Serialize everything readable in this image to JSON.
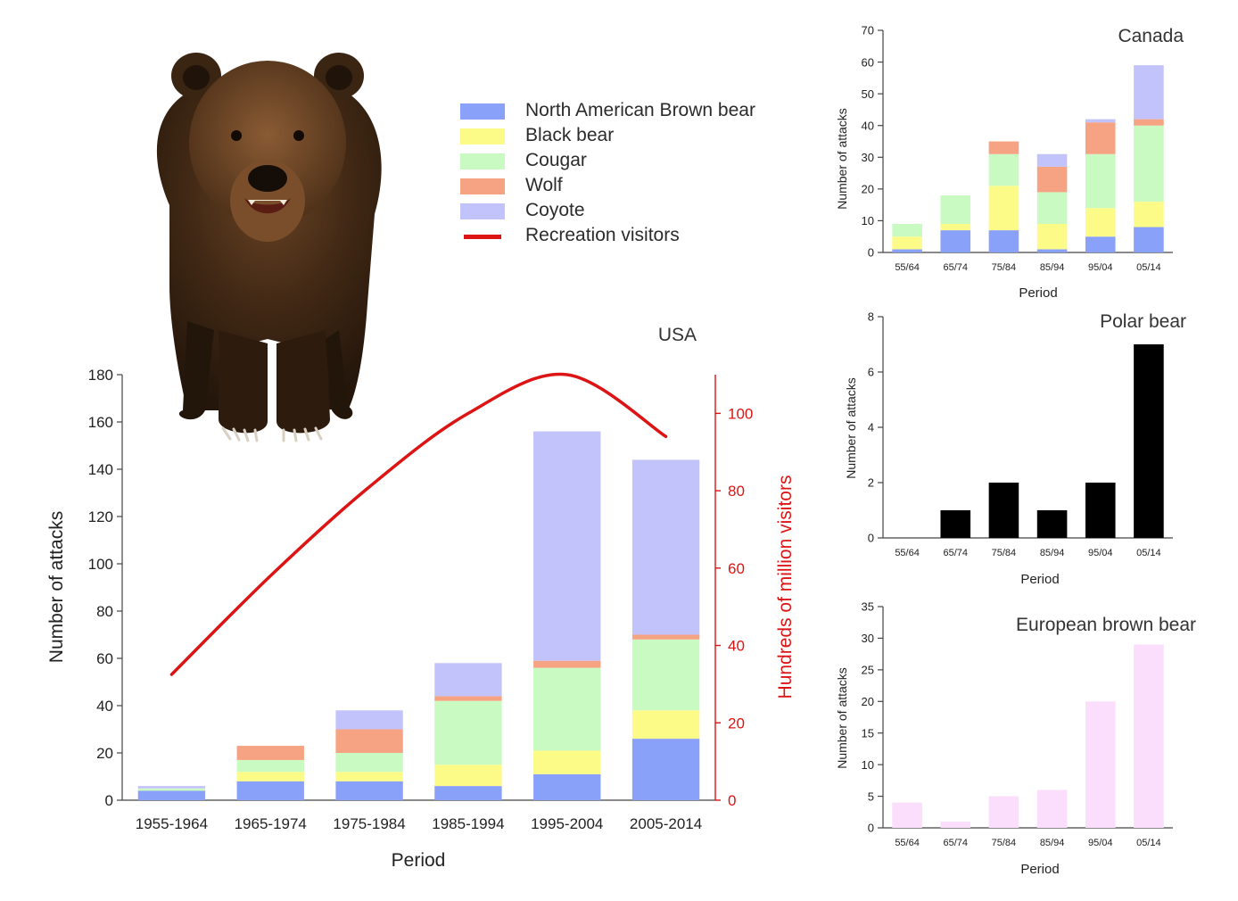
{
  "legend": {
    "items": [
      {
        "label": "North American Brown bear",
        "color": "#8aa1fa"
      },
      {
        "label": "Black bear",
        "color": "#fdfb88"
      },
      {
        "label": "Cougar",
        "color": "#c8fac2"
      },
      {
        "label": "Wolf",
        "color": "#f6a383"
      },
      {
        "label": "Coyote",
        "color": "#c3c3fb"
      },
      {
        "label": "Recreation visitors",
        "color": "#dd1414",
        "kind": "line"
      }
    ]
  },
  "chart_data": [
    {
      "id": "usa",
      "type": "bar",
      "stacked": true,
      "title": "USA",
      "xlabel": "Period",
      "ylabel": "Number of attacks",
      "y2label": "Hundreds of million visitors",
      "ylim": [
        0,
        180
      ],
      "yticks": [
        0,
        20,
        40,
        60,
        80,
        100,
        120,
        140,
        160,
        180
      ],
      "y2lim": [
        0,
        110
      ],
      "y2ticks": [
        0,
        20,
        40,
        60,
        80,
        100
      ],
      "categories": [
        "1955-1964",
        "1965-1974",
        "1975-1984",
        "1985-1994",
        "1995-2004",
        "2005-2014"
      ],
      "series": [
        {
          "name": "North American Brown bear",
          "values": [
            4,
            8,
            8,
            6,
            11,
            26
          ]
        },
        {
          "name": "Black bear",
          "values": [
            0,
            4,
            4,
            9,
            10,
            12
          ]
        },
        {
          "name": "Cougar",
          "values": [
            1,
            5,
            8,
            27,
            35,
            30
          ]
        },
        {
          "name": "Wolf",
          "values": [
            0,
            6,
            10,
            2,
            3,
            2
          ]
        },
        {
          "name": "Coyote",
          "values": [
            1,
            0,
            8,
            14,
            97,
            74
          ]
        }
      ],
      "line": {
        "name": "Recreation visitors",
        "axis": "right",
        "values": [
          32.5,
          58,
          81,
          100,
          110,
          94
        ]
      }
    },
    {
      "id": "canada",
      "type": "bar",
      "stacked": true,
      "title": "Canada",
      "xlabel": "Period",
      "ylabel": "Number of attacks",
      "ylim": [
        0,
        70
      ],
      "yticks": [
        0,
        10,
        20,
        30,
        40,
        50,
        60,
        70
      ],
      "categories": [
        "55/64",
        "65/74",
        "75/84",
        "85/94",
        "95/04",
        "05/14"
      ],
      "series": [
        {
          "name": "North American Brown bear",
          "values": [
            1,
            7,
            7,
            1,
            5,
            8
          ]
        },
        {
          "name": "Black bear",
          "values": [
            4,
            2,
            14,
            8,
            9,
            8
          ]
        },
        {
          "name": "Cougar",
          "values": [
            4,
            9,
            10,
            10,
            17,
            24
          ]
        },
        {
          "name": "Wolf",
          "values": [
            0,
            0,
            4,
            8,
            10,
            2
          ]
        },
        {
          "name": "Coyote",
          "values": [
            0,
            0,
            0,
            4,
            1,
            17
          ]
        }
      ]
    },
    {
      "id": "polar",
      "type": "bar",
      "title": "Polar bear",
      "xlabel": "Period",
      "ylabel": "Number of attacks",
      "ylim": [
        0,
        8
      ],
      "yticks": [
        0,
        2,
        4,
        6,
        8
      ],
      "categories": [
        "55/64",
        "65/74",
        "75/84",
        "85/94",
        "95/04",
        "05/14"
      ],
      "color": "#000000",
      "values": [
        0,
        1,
        2,
        1,
        2,
        7
      ]
    },
    {
      "id": "european",
      "type": "bar",
      "title": "European brown bear",
      "xlabel": "Period",
      "ylabel": "Number of attacks",
      "ylim": [
        0,
        35
      ],
      "yticks": [
        0,
        5,
        10,
        15,
        20,
        25,
        30,
        35
      ],
      "categories": [
        "55/64",
        "65/74",
        "75/84",
        "85/94",
        "95/04",
        "05/14"
      ],
      "color": "#fbdefb",
      "values": [
        4,
        1,
        5,
        6,
        20,
        29
      ]
    }
  ]
}
